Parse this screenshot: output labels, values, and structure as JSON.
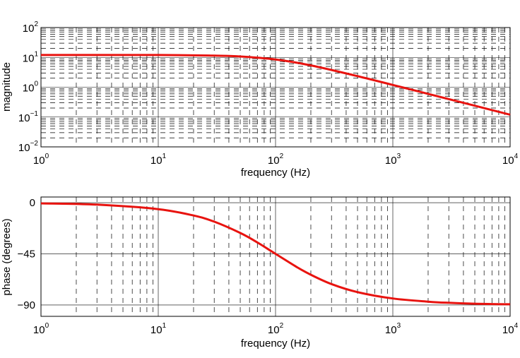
{
  "chart_data": [
    {
      "type": "line",
      "title": "",
      "xlabel": "frequency (Hz)",
      "ylabel": "magnitude",
      "xscale": "log",
      "yscale": "log",
      "xlim": [
        1,
        10000
      ],
      "ylim": [
        0.01,
        100
      ],
      "grid": "major solid, minor dashed (x and y)",
      "x_ticks": [
        {
          "base": "10",
          "exp": "0"
        },
        {
          "base": "10",
          "exp": "1"
        },
        {
          "base": "10",
          "exp": "2"
        },
        {
          "base": "10",
          "exp": "3"
        },
        {
          "base": "10",
          "exp": "4"
        }
      ],
      "y_ticks": [
        {
          "base": "10",
          "exp": "−2"
        },
        {
          "base": "10",
          "exp": "−1"
        },
        {
          "base": "10",
          "exp": "0"
        },
        {
          "base": "10",
          "exp": "1"
        },
        {
          "base": "10",
          "exp": "2"
        }
      ],
      "series": [
        {
          "color": "#e8130f",
          "x": [
            1,
            10,
            30,
            50,
            100,
            200,
            500,
            1000,
            2000,
            5000,
            10000
          ],
          "values": [
            12,
            12,
            11.4,
            10.7,
            8.5,
            5.4,
            2.35,
            1.19,
            0.6,
            0.24,
            0.12
          ]
        }
      ]
    },
    {
      "type": "line",
      "title": "",
      "xlabel": "frequency (Hz)",
      "ylabel": "phase (degrees)",
      "xscale": "log",
      "xlim": [
        1,
        10000
      ],
      "ylim": [
        -100,
        5
      ],
      "grid": "major solid, minor dashed on x; solid at y ticks",
      "x_ticks": [
        {
          "base": "10",
          "exp": "0"
        },
        {
          "base": "10",
          "exp": "1"
        },
        {
          "base": "10",
          "exp": "2"
        },
        {
          "base": "10",
          "exp": "3"
        },
        {
          "base": "10",
          "exp": "4"
        }
      ],
      "y_ticks": [
        {
          "value": 0,
          "label": "0"
        },
        {
          "value": -45,
          "label": "−45"
        },
        {
          "value": -90,
          "label": "−90"
        }
      ],
      "series": [
        {
          "color": "#e8130f",
          "x": [
            1,
            3,
            10,
            20,
            30,
            50,
            70,
            100,
            150,
            200,
            300,
            500,
            1000,
            2000,
            3000,
            5000,
            10000
          ],
          "values": [
            -0.6,
            -1.7,
            -5.7,
            -11.3,
            -16.7,
            -26.6,
            -35.0,
            -45.0,
            -56.3,
            -63.4,
            -71.6,
            -78.7,
            -84.3,
            -87.1,
            -88.1,
            -88.9,
            -89.4
          ]
        }
      ]
    }
  ]
}
